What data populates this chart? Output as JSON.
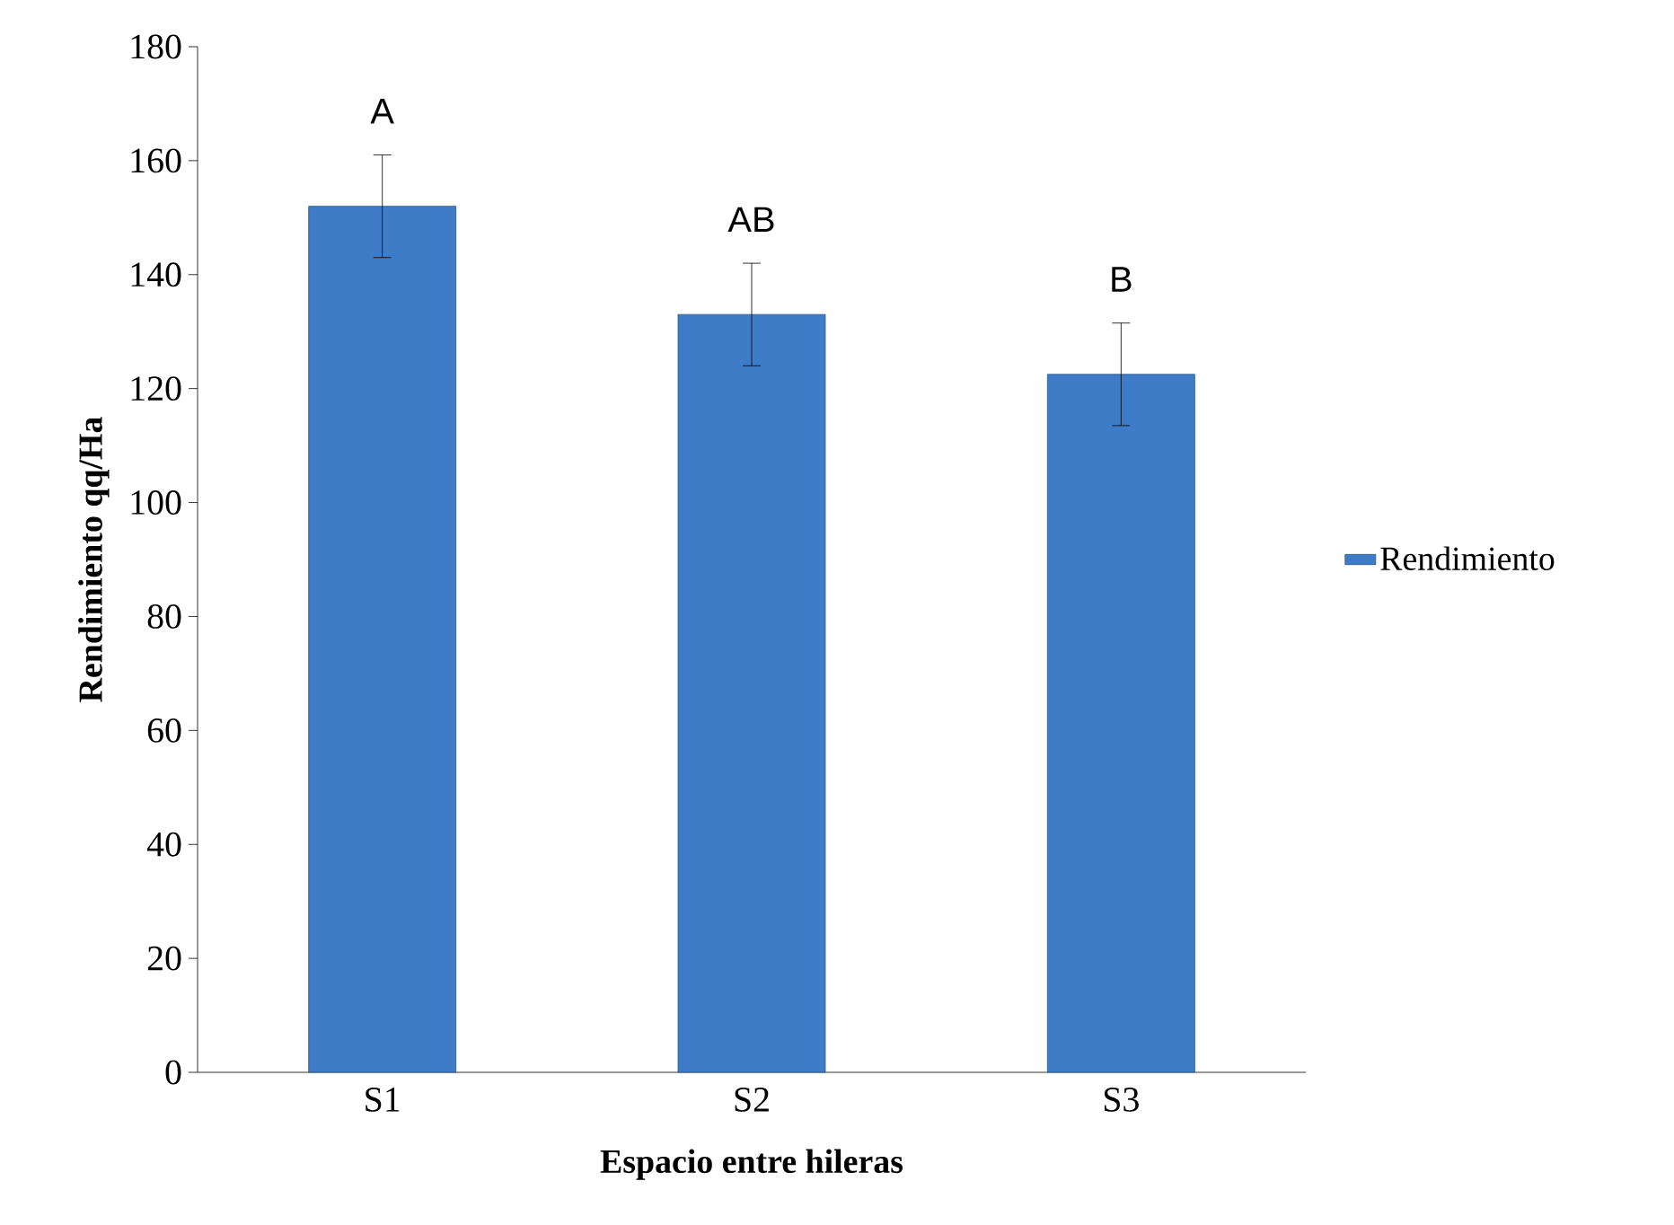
{
  "chart_data": {
    "type": "bar",
    "xlabel": "Espacio entre hileras",
    "ylabel": "Rendimiento qq/Ha",
    "categories": [
      "S1",
      "S2",
      "S3"
    ],
    "series": [
      {
        "name": "Rendimiento",
        "color": "#3f7cc8",
        "values": [
          152,
          133,
          122.5
        ],
        "errors": [
          9,
          9,
          9
        ]
      }
    ],
    "ylim": [
      0,
      180
    ],
    "yticks": [
      0,
      20,
      40,
      60,
      80,
      100,
      120,
      140,
      160,
      180
    ],
    "annotations": [
      "A",
      "AB",
      "B"
    ],
    "legend": "right",
    "grid": false
  }
}
